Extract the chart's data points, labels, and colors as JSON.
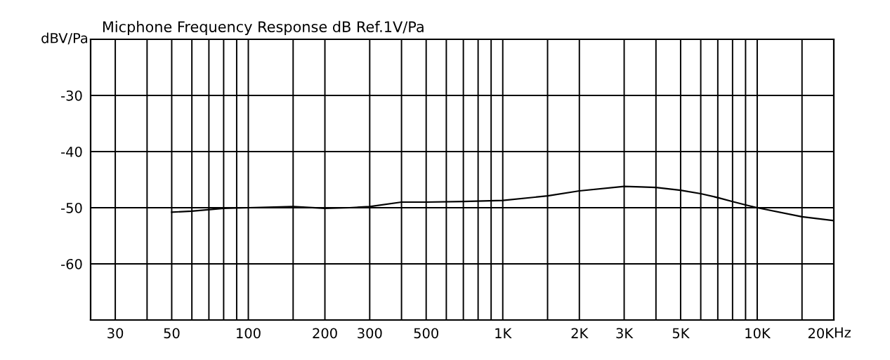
{
  "chart_data": {
    "type": "line",
    "title": "Micphone Frequency Response dB Ref.1V/Pa",
    "ylabel": "dBV/Pa",
    "xlabel": "Hz",
    "log": "x",
    "grid": true,
    "marker": "none",
    "line_style": "solid",
    "x": [
      50,
      60,
      80,
      100,
      150,
      200,
      250,
      300,
      400,
      500,
      700,
      1000,
      1500,
      2000,
      3000,
      3500,
      4000,
      5000,
      6000,
      7000,
      8000,
      9000,
      10000,
      15000,
      20000
    ],
    "series": [
      {
        "color": "#000000",
        "values": [
          -50.8,
          -50.6,
          -50.1,
          -50.0,
          -49.8,
          -50.1,
          -50.0,
          -49.8,
          -49.0,
          -49.0,
          -48.9,
          -48.7,
          -47.9,
          -47.0,
          -46.2,
          -46.3,
          -46.4,
          -46.9,
          -47.5,
          -48.2,
          -48.9,
          -49.5,
          -50.0,
          -51.6,
          -52.3
        ]
      }
    ],
    "xlim": [
      24,
      20000
    ],
    "xticks": [
      30,
      {
        "value": 40,
        "label": null
      },
      50,
      {
        "value": 60,
        "label": null
      },
      {
        "value": 70,
        "label": null
      },
      {
        "value": 80,
        "label": null
      },
      {
        "value": 90,
        "label": null
      },
      100,
      {
        "value": 150,
        "label": null
      },
      200,
      300,
      {
        "value": 400,
        "label": null
      },
      500,
      {
        "value": 600,
        "label": null
      },
      {
        "value": 700,
        "label": null
      },
      {
        "value": 800,
        "label": null
      },
      {
        "value": 900,
        "label": null
      },
      {
        "value": 1000,
        "label": "1K"
      },
      {
        "value": 1500,
        "label": null
      },
      {
        "value": 2000,
        "label": "2K"
      },
      {
        "value": 3000,
        "label": "3K"
      },
      {
        "value": 4000,
        "label": null
      },
      {
        "value": 5000,
        "label": "5K"
      },
      {
        "value": 6000,
        "label": null
      },
      {
        "value": 7000,
        "label": null
      },
      {
        "value": 8000,
        "label": null
      },
      {
        "value": 9000,
        "label": null
      },
      {
        "value": 10000,
        "label": "10K"
      },
      {
        "value": 15000,
        "label": null
      },
      {
        "value": 20000,
        "label": "20K"
      }
    ],
    "ylim": [
      -70,
      -20
    ],
    "yticks": [
      -60,
      -50,
      -40,
      -30
    ]
  }
}
